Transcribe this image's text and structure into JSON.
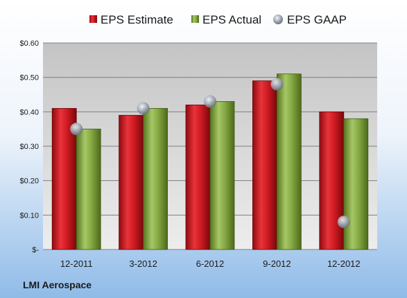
{
  "company": "LMI Aerospace",
  "colors": {
    "estimate": "#c8151b",
    "actual": "#7da03a",
    "gaap": "#a9b0bd"
  },
  "chart_data": {
    "type": "bar",
    "categories": [
      "12-2011",
      "3-2012",
      "6-2012",
      "9-2012",
      "12-2012"
    ],
    "series": [
      {
        "name": "EPS Estimate",
        "type": "bar",
        "values": [
          0.41,
          0.39,
          0.42,
          0.49,
          0.4
        ]
      },
      {
        "name": "EPS Actual",
        "type": "bar",
        "values": [
          0.35,
          0.41,
          0.43,
          0.51,
          0.38
        ]
      },
      {
        "name": "EPS GAAP",
        "type": "scatter",
        "values": [
          0.35,
          0.41,
          0.43,
          0.48,
          0.08
        ]
      }
    ],
    "yticks": [
      0,
      0.1,
      0.2,
      0.3,
      0.4,
      0.5,
      0.6
    ],
    "ytick_labels": [
      "$-",
      "$0.10",
      "$0.20",
      "$0.30",
      "$0.40",
      "$0.50",
      "$0.60"
    ],
    "ylim": [
      0,
      0.6
    ],
    "grid": true,
    "legend_position": "top"
  }
}
